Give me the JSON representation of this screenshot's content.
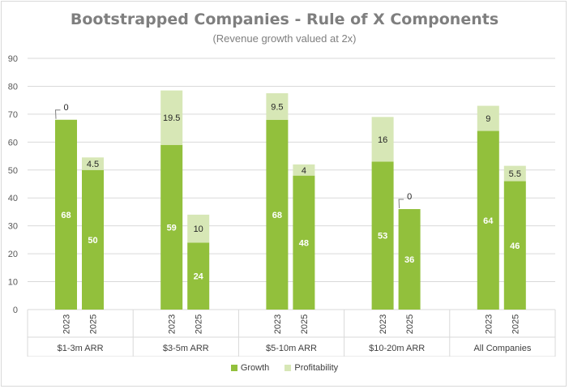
{
  "chart_data": {
    "type": "bar",
    "stacked": true,
    "title": "Bootstrapped Companies - Rule of X Components",
    "subtitle": "(Revenue growth valued at 2x)",
    "ylim": [
      0,
      90
    ],
    "yticks": [
      0,
      10,
      20,
      30,
      40,
      50,
      60,
      70,
      80,
      90
    ],
    "grid": true,
    "legend_position": "bottom",
    "groups": [
      "$1-3m ARR",
      "$3-5m ARR",
      "$5-10m ARR",
      "$10-20m ARR",
      "All Companies"
    ],
    "years": [
      "2023",
      "2025"
    ],
    "series": [
      {
        "name": "Growth",
        "color": "#92c03c",
        "values": [
          [
            68,
            50
          ],
          [
            59,
            24
          ],
          [
            68,
            48
          ],
          [
            53,
            36
          ],
          [
            64,
            46
          ]
        ]
      },
      {
        "name": "Profitability",
        "color": "#d7e7b6",
        "values": [
          [
            0,
            4.5
          ],
          [
            19.5,
            10
          ],
          [
            9.5,
            4
          ],
          [
            16,
            0
          ],
          [
            9,
            5.5
          ]
        ]
      }
    ],
    "growth_labels": [
      [
        "68",
        "50"
      ],
      [
        "59",
        "24"
      ],
      [
        "68",
        "48"
      ],
      [
        "53",
        "36"
      ],
      [
        "64",
        "46"
      ]
    ],
    "profit_labels": [
      [
        "0",
        "4.5"
      ],
      [
        "19.5",
        "10"
      ],
      [
        "9.5",
        "4"
      ],
      [
        "16",
        "0"
      ],
      [
        "9",
        "5.5"
      ]
    ]
  }
}
